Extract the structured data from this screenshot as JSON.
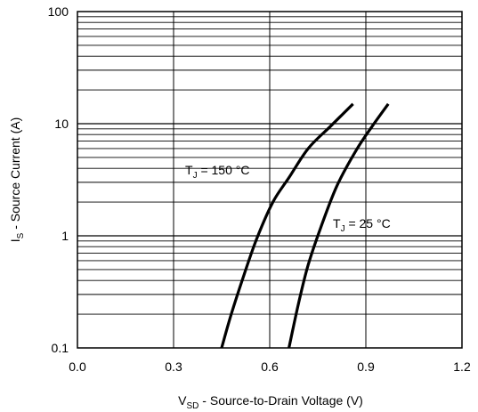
{
  "chart_data": {
    "type": "line",
    "title": "",
    "xlabel": {
      "main": "V",
      "sub": "SD",
      "rest": " - Source-to-Drain Voltage (V)"
    },
    "ylabel": {
      "main": "I",
      "sub": "S",
      "rest": " - Source Current (A)"
    },
    "xlim": [
      0.0,
      1.2
    ],
    "ylim": [
      0.1,
      100
    ],
    "yscale": "log",
    "grid": {
      "vertical": true,
      "horizontal": true,
      "minor_horizontal": true
    },
    "x_ticks": [
      {
        "value": 0.0,
        "label": "0.0"
      },
      {
        "value": 0.3,
        "label": "0.3"
      },
      {
        "value": 0.6,
        "label": "0.6"
      },
      {
        "value": 0.9,
        "label": "0.9"
      },
      {
        "value": 1.2,
        "label": "1.2"
      }
    ],
    "y_ticks": [
      {
        "value": 0.1,
        "label": "0.1"
      },
      {
        "value": 1,
        "label": "1"
      },
      {
        "value": 10,
        "label": "10"
      },
      {
        "value": 100,
        "label": "100"
      }
    ],
    "series": [
      {
        "name": {
          "main": "T",
          "sub": "J",
          "rest": " = 150 °C"
        },
        "color": "#000000",
        "x": [
          0.45,
          0.48,
          0.52,
          0.56,
          0.61,
          0.66,
          0.72,
          0.79,
          0.86
        ],
        "y": [
          0.1,
          0.2,
          0.45,
          0.95,
          2.0,
          3.3,
          6.0,
          9.5,
          15.0
        ]
      },
      {
        "name": {
          "main": "T",
          "sub": "J",
          "rest": " = 25 °C"
        },
        "color": "#000000",
        "x": [
          0.66,
          0.69,
          0.72,
          0.76,
          0.81,
          0.87,
          0.92,
          0.97
        ],
        "y": [
          0.1,
          0.25,
          0.55,
          1.2,
          2.8,
          5.8,
          9.5,
          15.0
        ]
      }
    ]
  }
}
